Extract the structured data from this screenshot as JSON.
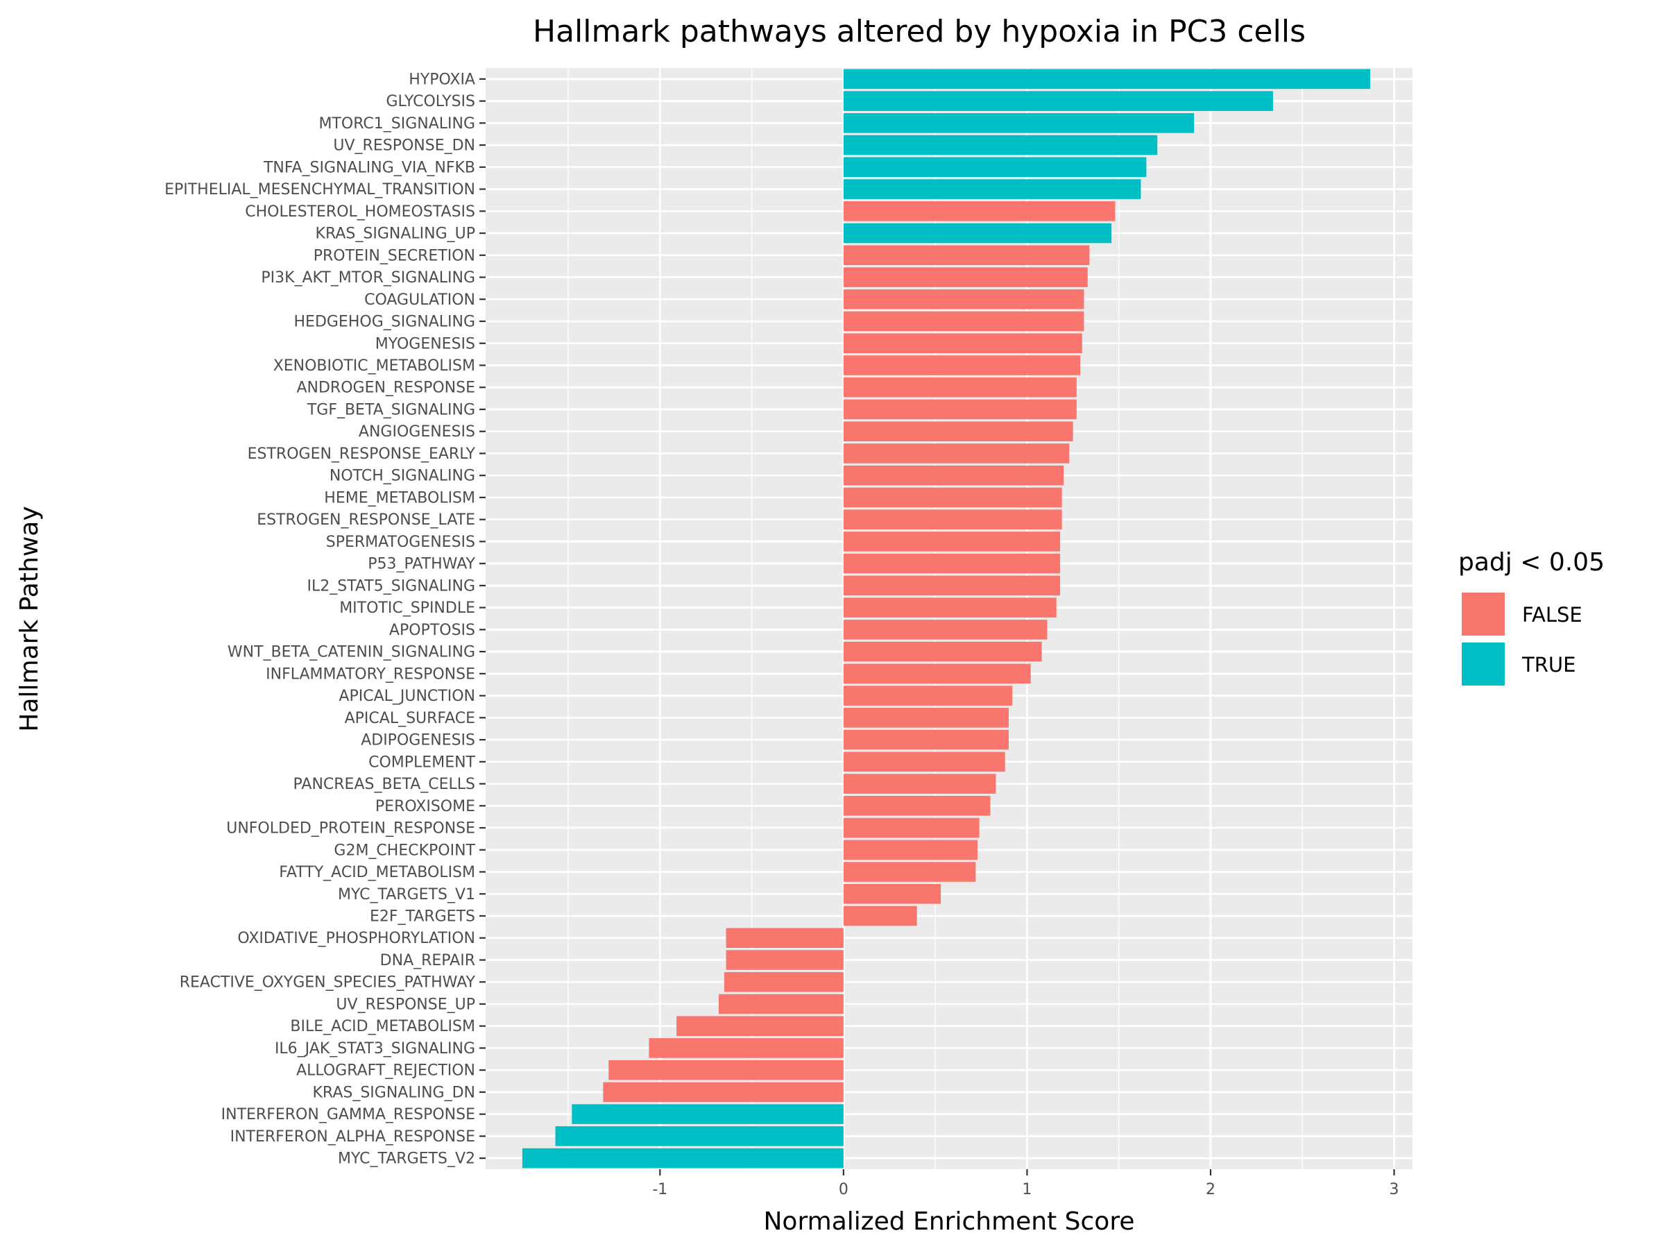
{
  "chart_data": {
    "type": "bar",
    "orientation": "horizontal",
    "title": "Hallmark pathways altered by hypoxia in PC3 cells",
    "xlabel": "Normalized Enrichment Score",
    "ylabel": "Hallmark Pathway",
    "xlim": [
      -1.95,
      3.1
    ],
    "xticks": [
      -1,
      0,
      1,
      2,
      3
    ],
    "xtick_labels": [
      "-1",
      "0",
      "1",
      "2",
      "3"
    ],
    "grid": true,
    "legend": {
      "title": "padj < 0.05",
      "position": "right",
      "entries": [
        {
          "label": "FALSE",
          "color": "#F8766D"
        },
        {
          "label": "TRUE",
          "color": "#00BFC4"
        }
      ]
    },
    "categories": [
      "HYPOXIA",
      "GLYCOLYSIS",
      "MTORC1_SIGNALING",
      "UV_RESPONSE_DN",
      "TNFA_SIGNALING_VIA_NFKB",
      "EPITHELIAL_MESENCHYMAL_TRANSITION",
      "CHOLESTEROL_HOMEOSTASIS",
      "KRAS_SIGNALING_UP",
      "PROTEIN_SECRETION",
      "PI3K_AKT_MTOR_SIGNALING",
      "COAGULATION",
      "HEDGEHOG_SIGNALING",
      "MYOGENESIS",
      "XENOBIOTIC_METABOLISM",
      "ANDROGEN_RESPONSE",
      "TGF_BETA_SIGNALING",
      "ANGIOGENESIS",
      "ESTROGEN_RESPONSE_EARLY",
      "NOTCH_SIGNALING",
      "HEME_METABOLISM",
      "ESTROGEN_RESPONSE_LATE",
      "SPERMATOGENESIS",
      "P53_PATHWAY",
      "IL2_STAT5_SIGNALING",
      "MITOTIC_SPINDLE",
      "APOPTOSIS",
      "WNT_BETA_CATENIN_SIGNALING",
      "INFLAMMATORY_RESPONSE",
      "APICAL_JUNCTION",
      "APICAL_SURFACE",
      "ADIPOGENESIS",
      "COMPLEMENT",
      "PANCREAS_BETA_CELLS",
      "PEROXISOME",
      "UNFOLDED_PROTEIN_RESPONSE",
      "G2M_CHECKPOINT",
      "FATTY_ACID_METABOLISM",
      "MYC_TARGETS_V1",
      "E2F_TARGETS",
      "OXIDATIVE_PHOSPHORYLATION",
      "DNA_REPAIR",
      "REACTIVE_OXYGEN_SPECIES_PATHWAY",
      "UV_RESPONSE_UP",
      "BILE_ACID_METABOLISM",
      "IL6_JAK_STAT3_SIGNALING",
      "ALLOGRAFT_REJECTION",
      "KRAS_SIGNALING_DN",
      "INTERFERON_GAMMA_RESPONSE",
      "INTERFERON_ALPHA_RESPONSE",
      "MYC_TARGETS_V2"
    ],
    "values": [
      2.87,
      2.34,
      1.91,
      1.71,
      1.65,
      1.62,
      1.48,
      1.46,
      1.34,
      1.33,
      1.31,
      1.31,
      1.3,
      1.29,
      1.27,
      1.27,
      1.25,
      1.23,
      1.2,
      1.19,
      1.19,
      1.18,
      1.18,
      1.18,
      1.16,
      1.11,
      1.08,
      1.02,
      0.92,
      0.9,
      0.9,
      0.88,
      0.83,
      0.8,
      0.74,
      0.73,
      0.72,
      0.53,
      0.4,
      -0.64,
      -0.64,
      -0.65,
      -0.68,
      -0.91,
      -1.06,
      -1.28,
      -1.31,
      -1.48,
      -1.57,
      -1.75
    ],
    "significant": [
      true,
      true,
      true,
      true,
      true,
      true,
      false,
      true,
      false,
      false,
      false,
      false,
      false,
      false,
      false,
      false,
      false,
      false,
      false,
      false,
      false,
      false,
      false,
      false,
      false,
      false,
      false,
      false,
      false,
      false,
      false,
      false,
      false,
      false,
      false,
      false,
      false,
      false,
      false,
      false,
      false,
      false,
      false,
      false,
      false,
      false,
      false,
      true,
      true,
      true
    ],
    "colors": {
      "FALSE": "#F8766D",
      "TRUE": "#00BFC4"
    },
    "panel_background": "#EBEBEB",
    "gridline_color": "#FFFFFF"
  }
}
